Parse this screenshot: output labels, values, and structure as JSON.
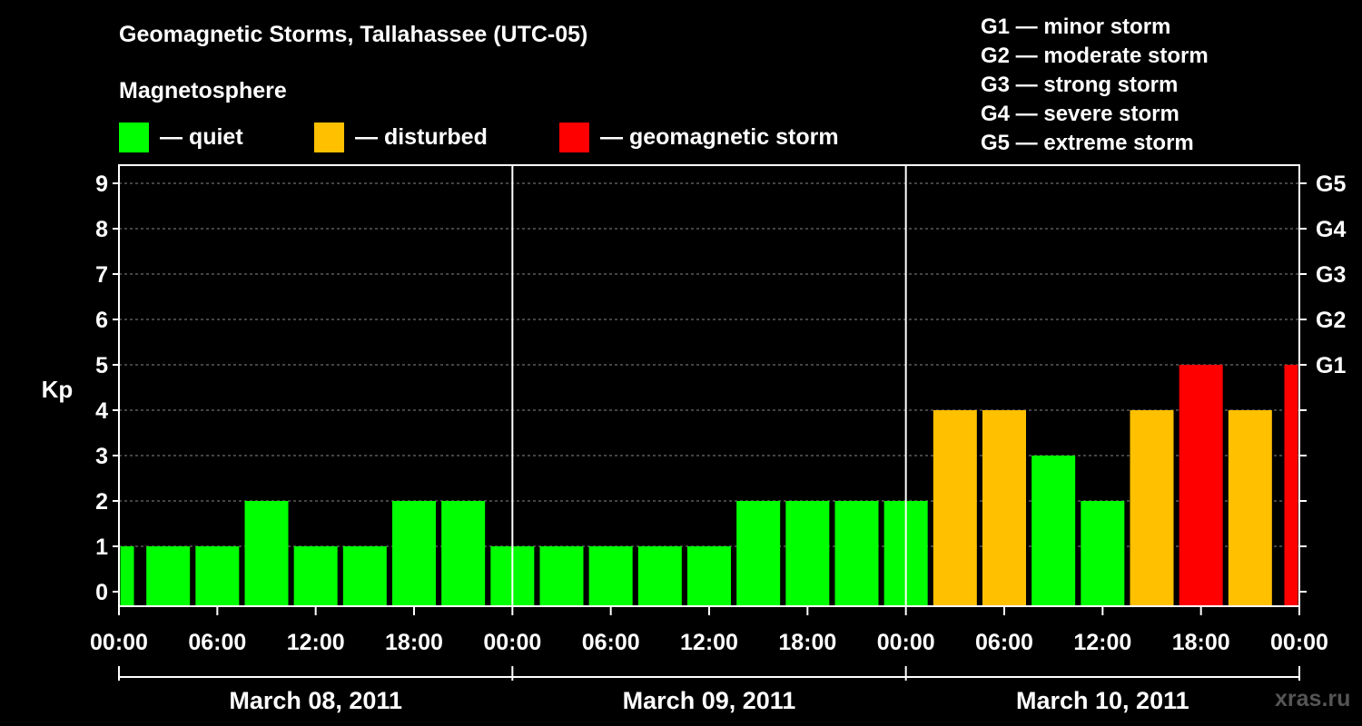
{
  "title": "Geomagnetic Storms, Tallahassee (UTC-05)",
  "subtitle": "Magnetosphere",
  "legend": [
    {
      "label": "— quiet",
      "color": "#00ff00"
    },
    {
      "label": "— disturbed",
      "color": "#ffc000"
    },
    {
      "label": "— geomagnetic storm",
      "color": "#ff0000"
    }
  ],
  "storm_scale": [
    "G1 — minor storm",
    "G2 — moderate storm",
    "G3 — strong storm",
    "G4 — severe storm",
    "G5 — extreme storm"
  ],
  "watermark": "xras.ru",
  "chart_data": {
    "type": "bar",
    "title": "Geomagnetic Storms, Tallahassee (UTC-05)",
    "ylabel": "Kp",
    "ylim": [
      0,
      9
    ],
    "yticks": [
      "0",
      "1",
      "2",
      "3",
      "4",
      "5",
      "6",
      "7",
      "8",
      "9"
    ],
    "right_ticks": [
      {
        "kp": 5,
        "label": "G1"
      },
      {
        "kp": 6,
        "label": "G2"
      },
      {
        "kp": 7,
        "label": "G3"
      },
      {
        "kp": 8,
        "label": "G4"
      },
      {
        "kp": 9,
        "label": "G5"
      }
    ],
    "xtick_labels": [
      "00:00",
      "06:00",
      "12:00",
      "18:00",
      "00:00",
      "06:00",
      "12:00",
      "18:00",
      "00:00",
      "06:00",
      "12:00",
      "18:00",
      "00:00"
    ],
    "days": [
      "March 08, 2011",
      "March 09, 2011",
      "March 10, 2011"
    ],
    "bar_hours": [
      0.5,
      3,
      6,
      9,
      12,
      15,
      18,
      21,
      24,
      27,
      30,
      33,
      36,
      39,
      42,
      45,
      48,
      51,
      54,
      57,
      60,
      63,
      66,
      69,
      71.5
    ],
    "values": [
      1,
      1,
      1,
      2,
      1,
      1,
      2,
      2,
      1,
      1,
      1,
      1,
      1,
      2,
      2,
      2,
      2,
      4,
      4,
      3,
      2,
      4,
      5,
      4,
      5
    ],
    "colors": {
      "quiet": "#00ff00",
      "disturbed": "#ffc000",
      "storm": "#ff0000"
    }
  }
}
